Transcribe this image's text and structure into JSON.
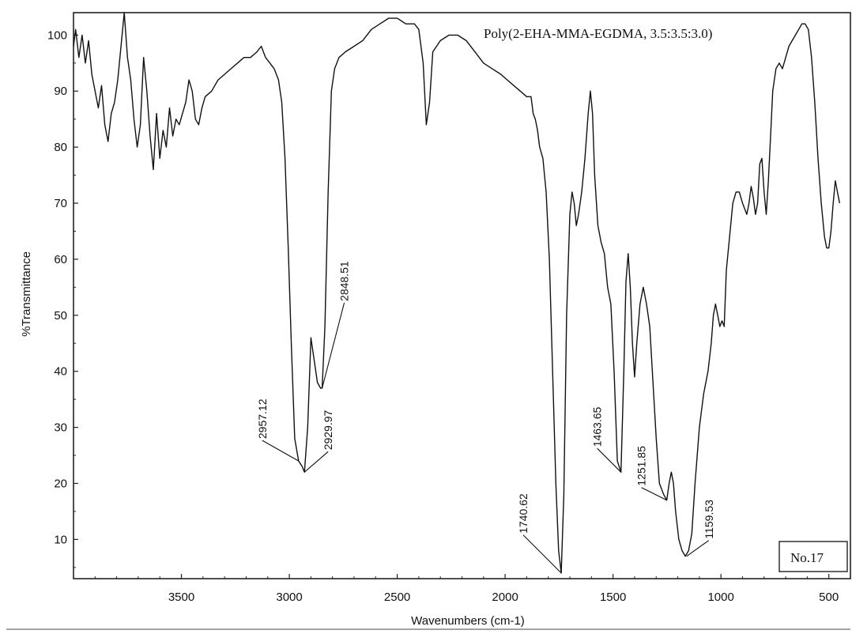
{
  "chart_data": {
    "type": "line",
    "title": "Poly(2-EHA-MMA-EGDMA, 3.5:3.5:3.0)",
    "xlabel": "Wavenumbers (cm-1)",
    "ylabel": "%Transmittance",
    "x_reversed": true,
    "xlim": [
      4000,
      400
    ],
    "ylim": [
      3,
      104
    ],
    "x_ticks": [
      3500,
      3000,
      2500,
      2000,
      1500,
      1000,
      500
    ],
    "y_ticks": [
      10,
      20,
      30,
      40,
      50,
      60,
      70,
      80,
      90,
      100
    ],
    "grid": false,
    "sample_label": "No.17",
    "series": [
      {
        "points": [
          [
            4000,
            98
          ],
          [
            3990,
            101
          ],
          [
            3975,
            96
          ],
          [
            3960,
            100
          ],
          [
            3945,
            95
          ],
          [
            3930,
            99
          ],
          [
            3915,
            93
          ],
          [
            3900,
            90
          ],
          [
            3885,
            87
          ],
          [
            3870,
            91
          ],
          [
            3855,
            84
          ],
          [
            3840,
            81
          ],
          [
            3825,
            86
          ],
          [
            3810,
            88
          ],
          [
            3795,
            92
          ],
          [
            3780,
            98
          ],
          [
            3765,
            104
          ],
          [
            3750,
            96
          ],
          [
            3735,
            92
          ],
          [
            3720,
            85
          ],
          [
            3705,
            80
          ],
          [
            3690,
            84
          ],
          [
            3675,
            96
          ],
          [
            3660,
            90
          ],
          [
            3645,
            82
          ],
          [
            3630,
            76
          ],
          [
            3615,
            86
          ],
          [
            3600,
            78
          ],
          [
            3585,
            83
          ],
          [
            3570,
            80
          ],
          [
            3555,
            87
          ],
          [
            3540,
            82
          ],
          [
            3525,
            85
          ],
          [
            3510,
            84
          ],
          [
            3495,
            86
          ],
          [
            3480,
            88
          ],
          [
            3465,
            92
          ],
          [
            3450,
            90
          ],
          [
            3435,
            85
          ],
          [
            3420,
            84
          ],
          [
            3405,
            87
          ],
          [
            3390,
            89
          ],
          [
            3360,
            90
          ],
          [
            3330,
            92
          ],
          [
            3300,
            93
          ],
          [
            3270,
            94
          ],
          [
            3240,
            95
          ],
          [
            3210,
            96
          ],
          [
            3180,
            96
          ],
          [
            3150,
            97
          ],
          [
            3130,
            98
          ],
          [
            3110,
            96
          ],
          [
            3090,
            95
          ],
          [
            3070,
            94
          ],
          [
            3050,
            92
          ],
          [
            3035,
            88
          ],
          [
            3020,
            78
          ],
          [
            3005,
            62
          ],
          [
            2990,
            44
          ],
          [
            2975,
            28
          ],
          [
            2957,
            24
          ],
          [
            2940,
            23
          ],
          [
            2930,
            22
          ],
          [
            2915,
            30
          ],
          [
            2900,
            46
          ],
          [
            2885,
            42
          ],
          [
            2870,
            38
          ],
          [
            2855,
            37
          ],
          [
            2848,
            37
          ],
          [
            2835,
            48
          ],
          [
            2820,
            72
          ],
          [
            2805,
            90
          ],
          [
            2790,
            94
          ],
          [
            2770,
            96
          ],
          [
            2740,
            97
          ],
          [
            2700,
            98
          ],
          [
            2660,
            99
          ],
          [
            2620,
            101
          ],
          [
            2580,
            102
          ],
          [
            2540,
            103
          ],
          [
            2500,
            103
          ],
          [
            2460,
            102
          ],
          [
            2420,
            102
          ],
          [
            2400,
            101
          ],
          [
            2380,
            95
          ],
          [
            2365,
            84
          ],
          [
            2350,
            88
          ],
          [
            2335,
            97
          ],
          [
            2300,
            99
          ],
          [
            2260,
            100
          ],
          [
            2220,
            100
          ],
          [
            2180,
            99
          ],
          [
            2140,
            97
          ],
          [
            2100,
            95
          ],
          [
            2060,
            94
          ],
          [
            2020,
            93
          ],
          [
            1990,
            92
          ],
          [
            1960,
            91
          ],
          [
            1930,
            90
          ],
          [
            1900,
            89
          ],
          [
            1880,
            89
          ],
          [
            1870,
            86
          ],
          [
            1860,
            85
          ],
          [
            1850,
            83
          ],
          [
            1840,
            80
          ],
          [
            1825,
            78
          ],
          [
            1810,
            72
          ],
          [
            1795,
            60
          ],
          [
            1780,
            40
          ],
          [
            1765,
            20
          ],
          [
            1752,
            8
          ],
          [
            1740,
            4
          ],
          [
            1728,
            18
          ],
          [
            1715,
            50
          ],
          [
            1700,
            68
          ],
          [
            1690,
            72
          ],
          [
            1680,
            70
          ],
          [
            1670,
            66
          ],
          [
            1660,
            68
          ],
          [
            1645,
            72
          ],
          [
            1630,
            78
          ],
          [
            1615,
            86
          ],
          [
            1605,
            90
          ],
          [
            1595,
            86
          ],
          [
            1585,
            75
          ],
          [
            1570,
            66
          ],
          [
            1555,
            63
          ],
          [
            1540,
            61
          ],
          [
            1525,
            55
          ],
          [
            1510,
            52
          ],
          [
            1495,
            40
          ],
          [
            1480,
            24
          ],
          [
            1463,
            22
          ],
          [
            1450,
            40
          ],
          [
            1440,
            56
          ],
          [
            1430,
            61
          ],
          [
            1420,
            55
          ],
          [
            1410,
            45
          ],
          [
            1400,
            39
          ],
          [
            1390,
            45
          ],
          [
            1375,
            52
          ],
          [
            1360,
            55
          ],
          [
            1345,
            52
          ],
          [
            1330,
            48
          ],
          [
            1315,
            38
          ],
          [
            1300,
            28
          ],
          [
            1285,
            20
          ],
          [
            1265,
            18
          ],
          [
            1251,
            17
          ],
          [
            1240,
            20
          ],
          [
            1230,
            22
          ],
          [
            1220,
            20
          ],
          [
            1210,
            15
          ],
          [
            1195,
            10
          ],
          [
            1180,
            8
          ],
          [
            1165,
            7
          ],
          [
            1150,
            8
          ],
          [
            1135,
            11
          ],
          [
            1120,
            20
          ],
          [
            1100,
            30
          ],
          [
            1080,
            36
          ],
          [
            1060,
            40
          ],
          [
            1045,
            45
          ],
          [
            1035,
            50
          ],
          [
            1025,
            52
          ],
          [
            1015,
            50
          ],
          [
            1005,
            48
          ],
          [
            995,
            49
          ],
          [
            985,
            48
          ],
          [
            975,
            58
          ],
          [
            960,
            64
          ],
          [
            945,
            70
          ],
          [
            930,
            72
          ],
          [
            915,
            72
          ],
          [
            900,
            70
          ],
          [
            890,
            69
          ],
          [
            880,
            68
          ],
          [
            870,
            70
          ],
          [
            860,
            73
          ],
          [
            850,
            71
          ],
          [
            840,
            68
          ],
          [
            830,
            70
          ],
          [
            820,
            77
          ],
          [
            810,
            78
          ],
          [
            800,
            72
          ],
          [
            790,
            68
          ],
          [
            780,
            74
          ],
          [
            770,
            82
          ],
          [
            760,
            90
          ],
          [
            745,
            94
          ],
          [
            730,
            95
          ],
          [
            715,
            94
          ],
          [
            700,
            96
          ],
          [
            685,
            98
          ],
          [
            670,
            99
          ],
          [
            655,
            100
          ],
          [
            640,
            101
          ],
          [
            625,
            102
          ],
          [
            610,
            102
          ],
          [
            595,
            101
          ],
          [
            580,
            96
          ],
          [
            565,
            88
          ],
          [
            550,
            78
          ],
          [
            535,
            70
          ],
          [
            520,
            64
          ],
          [
            510,
            62
          ],
          [
            500,
            62
          ],
          [
            490,
            65
          ],
          [
            480,
            70
          ],
          [
            470,
            74
          ],
          [
            460,
            72
          ],
          [
            450,
            70
          ]
        ]
      }
    ],
    "annotations": [
      {
        "text": "2957.12",
        "x": 2957,
        "y": 24
      },
      {
        "text": "2929.97",
        "x": 2930,
        "y": 22
      },
      {
        "text": "2848.51",
        "x": 2848,
        "y": 37
      },
      {
        "text": "1740.62",
        "x": 1740,
        "y": 4
      },
      {
        "text": "1463.65",
        "x": 1463,
        "y": 22
      },
      {
        "text": "1251.85",
        "x": 1251,
        "y": 17
      },
      {
        "text": "1159.53",
        "x": 1159,
        "y": 7
      }
    ]
  }
}
